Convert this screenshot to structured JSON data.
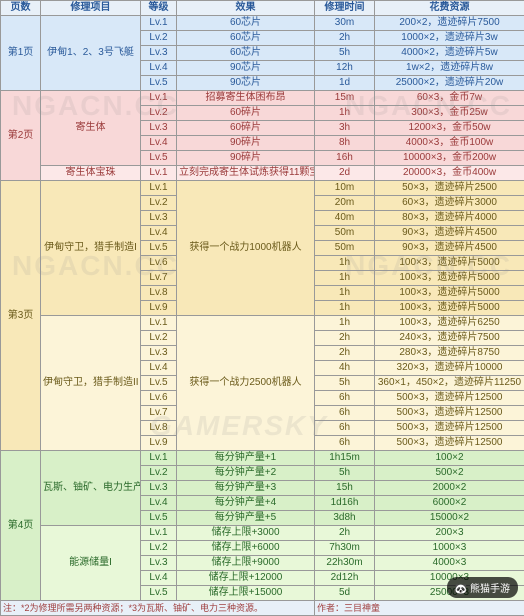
{
  "headers": [
    "页数",
    "修理项目",
    "等级",
    "效果",
    "修理时间",
    "花费资源"
  ],
  "cols": [
    40,
    100,
    36,
    138,
    60,
    150
  ],
  "pages": [
    {
      "name": "第1页",
      "color": "blue",
      "groups": [
        {
          "item": "伊甸1、2、3号飞艇",
          "rows": [
            [
              "Lv.1",
              "60芯片",
              "30m",
              "200×2，遗迹碎片7500"
            ],
            [
              "Lv.2",
              "60芯片",
              "2h",
              "1000×2，遗迹碎片3w"
            ],
            [
              "Lv.3",
              "60芯片",
              "5h",
              "4000×2，遗迹碎片5w"
            ],
            [
              "Lv.4",
              "90芯片",
              "12h",
              "1w×2，遗迹碎片8w"
            ],
            [
              "Lv.5",
              "90芯片",
              "1d",
              "25000×2，遗迹碎片20w"
            ]
          ]
        }
      ]
    },
    {
      "name": "第2页",
      "color": "red",
      "groups": [
        {
          "item": "寄生体",
          "rows": [
            [
              "Lv.1",
              "招募寄生体困布昂",
              "15m",
              "60×3，金币7w"
            ],
            [
              "Lv.2",
              "60碎片",
              "1h",
              "300×3，金币25w"
            ],
            [
              "Lv.3",
              "60碎片",
              "3h",
              "1200×3，金币50w"
            ],
            [
              "Lv.4",
              "90碎片",
              "8h",
              "4000×3，金币100w"
            ],
            [
              "Lv.5",
              "90碎片",
              "16h",
              "10000×3，金币200w"
            ]
          ]
        },
        {
          "item": "寄生体宝珠",
          "rows": [
            [
              "Lv.1",
              "立刻完成寄生体试炼获得11颗宝珠",
              "2d",
              "20000×3，金币400w"
            ]
          ]
        }
      ]
    },
    {
      "name": "第3页",
      "color": "yel",
      "groups": [
        {
          "item": "伊甸守卫，猎手制造I",
          "eff": "获得一个战力1000机器人",
          "rows": [
            [
              "Lv.1",
              "",
              "10m",
              "50×3，遗迹碎片2500"
            ],
            [
              "Lv.2",
              "",
              "20m",
              "60×3，遗迹碎片3000"
            ],
            [
              "Lv.3",
              "",
              "40m",
              "80×3，遗迹碎片4000"
            ],
            [
              "Lv.4",
              "",
              "50m",
              "90×3，遗迹碎片4500"
            ],
            [
              "Lv.5",
              "",
              "50m",
              "90×3，遗迹碎片4500"
            ],
            [
              "Lv.6",
              "",
              "1h",
              "100×3，遗迹碎片5000"
            ],
            [
              "Lv.7",
              "",
              "1h",
              "100×3，遗迹碎片5000"
            ],
            [
              "Lv.8",
              "",
              "1h",
              "100×3，遗迹碎片5000"
            ],
            [
              "Lv.9",
              "",
              "1h",
              "100×3，遗迹碎片5000"
            ]
          ]
        },
        {
          "item": "伊甸守卫，猎手制造II",
          "eff": "获得一个战力2500机器人",
          "rows": [
            [
              "Lv.1",
              "",
              "1h",
              "100×3，遗迹碎片6250"
            ],
            [
              "Lv.2",
              "",
              "2h",
              "240×3，遗迹碎片7500"
            ],
            [
              "Lv.3",
              "",
              "2h",
              "280×3，遗迹碎片8750"
            ],
            [
              "Lv.4",
              "",
              "4h",
              "320×3，遗迹碎片10000"
            ],
            [
              "Lv.5",
              "",
              "5h",
              "360×1，450×2，遗迹碎片11250"
            ],
            [
              "Lv.6",
              "",
              "6h",
              "500×3，遗迹碎片12500"
            ],
            [
              "Lv.7",
              "",
              "6h",
              "500×3，遗迹碎片12500"
            ],
            [
              "Lv.8",
              "",
              "6h",
              "500×3，遗迹碎片12500"
            ],
            [
              "Lv.9",
              "",
              "6h",
              "500×3，遗迹碎片12500"
            ]
          ]
        }
      ]
    },
    {
      "name": "第4页",
      "color": "grn",
      "groups": [
        {
          "item": "瓦斯、铀矿、电力生产I",
          "rows": [
            [
              "Lv.1",
              "每分钟产量+1",
              "1h15m",
              "100×2"
            ],
            [
              "Lv.2",
              "每分钟产量+2",
              "5h",
              "500×2"
            ],
            [
              "Lv.3",
              "每分钟产量+3",
              "15h",
              "2000×2"
            ],
            [
              "Lv.4",
              "每分钟产量+4",
              "1d16h",
              "6000×2"
            ],
            [
              "Lv.5",
              "每分钟产量+5",
              "3d8h",
              "15000×2"
            ]
          ]
        },
        {
          "item": "能源储量I",
          "rows": [
            [
              "Lv.1",
              "储存上限+3000",
              "2h",
              "200×3"
            ],
            [
              "Lv.2",
              "储存上限+6000",
              "7h30m",
              "1000×3"
            ],
            [
              "Lv.3",
              "储存上限+9000",
              "22h30m",
              "4000×3"
            ],
            [
              "Lv.4",
              "储存上限+12000",
              "2d12h",
              "10000×3"
            ],
            [
              "Lv.5",
              "储存上限+15000",
              "5d",
              "25000×3"
            ]
          ]
        }
      ]
    }
  ],
  "footer_note": "注：*2为修理所需另两种资源；*3为瓦斯、铀矿、电力三种资源。",
  "footer_author": "作者：三目神童",
  "watermark": "NGACN.CC",
  "logo": "熊猫手游"
}
